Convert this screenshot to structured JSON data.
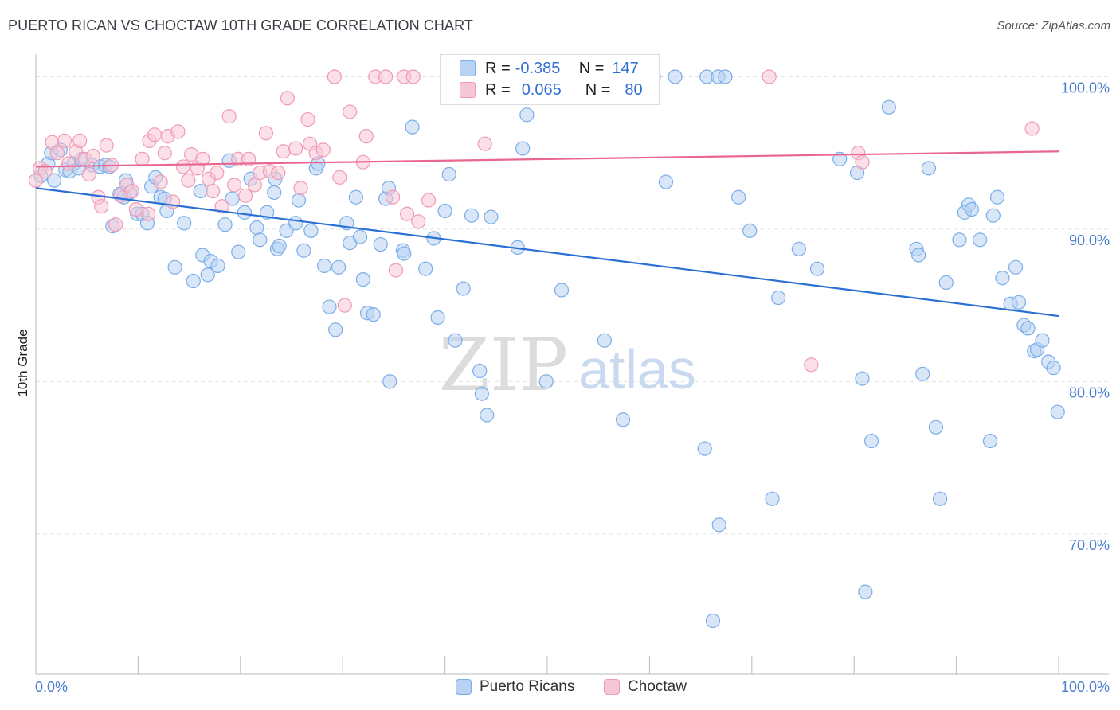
{
  "chart_data": {
    "type": "scatter",
    "title": "PUERTO RICAN VS CHOCTAW 10TH GRADE CORRELATION CHART",
    "source": "Source: ZipAtlas.com",
    "ylabel": "10th Grade",
    "xlabel": "",
    "x_tick_labels": [
      "0.0%",
      "100.0%"
    ],
    "y_tick_labels": [
      "100.0%",
      "90.0%",
      "80.0%",
      "70.0%"
    ],
    "y_ticks": [
      100,
      90,
      80,
      70
    ],
    "xlim": [
      0,
      100
    ],
    "ylim": [
      60.8,
      101.8
    ],
    "watermark": {
      "zip": "ZIP",
      "atlas": "atlas"
    },
    "legend": {
      "r_label": "R =",
      "n_label": "N =",
      "items": [
        {
          "name": "Puerto Ricans",
          "r": "-0.385",
          "n": "147"
        },
        {
          "name": "Choctaw",
          "r": "0.065",
          "n": "80"
        }
      ]
    },
    "series": [
      {
        "name": "Puerto Ricans",
        "color": "#7aaee8",
        "fill": "#b8d2f3",
        "line_color": "#2a6fd4",
        "trend": {
          "x": [
            0,
            100
          ],
          "y": [
            92.7,
            84.3
          ]
        },
        "points": [
          [
            0.5,
            93.5
          ],
          [
            1.2,
            94.3
          ],
          [
            1.5,
            95.0
          ],
          [
            1.8,
            93.2
          ],
          [
            2.4,
            95.2
          ],
          [
            2.9,
            93.9
          ],
          [
            3.3,
            93.8
          ],
          [
            3.7,
            94.3
          ],
          [
            4.2,
            94.0
          ],
          [
            4.5,
            94.6
          ],
          [
            5.5,
            94.2
          ],
          [
            6.3,
            94.1
          ],
          [
            6.8,
            94.2
          ],
          [
            7.2,
            94.1
          ],
          [
            7.5,
            90.2
          ],
          [
            8.2,
            92.3
          ],
          [
            8.6,
            92.1
          ],
          [
            8.8,
            93.2
          ],
          [
            9.2,
            92.4
          ],
          [
            9.9,
            91.0
          ],
          [
            10.4,
            91.0
          ],
          [
            10.9,
            90.4
          ],
          [
            11.3,
            92.8
          ],
          [
            11.7,
            93.4
          ],
          [
            12.2,
            92.1
          ],
          [
            12.6,
            92.0
          ],
          [
            12.8,
            91.2
          ],
          [
            13.6,
            87.5
          ],
          [
            14.5,
            90.4
          ],
          [
            15.4,
            86.6
          ],
          [
            16.1,
            92.5
          ],
          [
            16.3,
            88.3
          ],
          [
            16.8,
            87.0
          ],
          [
            17.1,
            87.9
          ],
          [
            17.8,
            87.6
          ],
          [
            18.5,
            90.3
          ],
          [
            18.9,
            94.5
          ],
          [
            19.2,
            92.0
          ],
          [
            19.8,
            88.5
          ],
          [
            20.4,
            91.1
          ],
          [
            21.0,
            93.3
          ],
          [
            21.6,
            90.1
          ],
          [
            21.9,
            89.3
          ],
          [
            22.6,
            91.1
          ],
          [
            23.3,
            92.4
          ],
          [
            23.4,
            93.3
          ],
          [
            23.6,
            88.7
          ],
          [
            23.8,
            88.9
          ],
          [
            24.5,
            89.9
          ],
          [
            25.4,
            90.4
          ],
          [
            25.7,
            91.9
          ],
          [
            26.2,
            88.6
          ],
          [
            26.9,
            89.9
          ],
          [
            27.4,
            94.0
          ],
          [
            27.6,
            94.3
          ],
          [
            28.2,
            87.6
          ],
          [
            28.7,
            84.9
          ],
          [
            29.3,
            83.4
          ],
          [
            29.6,
            87.5
          ],
          [
            30.4,
            90.4
          ],
          [
            30.7,
            89.1
          ],
          [
            31.3,
            92.1
          ],
          [
            31.7,
            89.5
          ],
          [
            32.0,
            86.7
          ],
          [
            32.4,
            84.5
          ],
          [
            33.0,
            84.4
          ],
          [
            33.7,
            89.0
          ],
          [
            34.2,
            92.0
          ],
          [
            34.5,
            92.7
          ],
          [
            34.6,
            80.0
          ],
          [
            35.9,
            88.6
          ],
          [
            36.0,
            88.4
          ],
          [
            36.8,
            96.7
          ],
          [
            38.1,
            87.4
          ],
          [
            38.9,
            89.4
          ],
          [
            39.3,
            84.2
          ],
          [
            40.0,
            91.2
          ],
          [
            40.4,
            93.6
          ],
          [
            41.0,
            82.7
          ],
          [
            41.8,
            86.1
          ],
          [
            42.6,
            90.9
          ],
          [
            43.4,
            80.7
          ],
          [
            43.6,
            79.2
          ],
          [
            44.1,
            77.8
          ],
          [
            44.5,
            90.8
          ],
          [
            47.1,
            88.8
          ],
          [
            47.6,
            95.3
          ],
          [
            48.0,
            97.5
          ],
          [
            49.1,
            100.0
          ],
          [
            49.9,
            80.0
          ],
          [
            51.4,
            86.0
          ],
          [
            53.7,
            100.0
          ],
          [
            55.6,
            82.7
          ],
          [
            57.4,
            77.5
          ],
          [
            59.0,
            100.0
          ],
          [
            60.4,
            100.0
          ],
          [
            61.6,
            93.1
          ],
          [
            62.5,
            100.0
          ],
          [
            65.4,
            75.6
          ],
          [
            65.6,
            100.0
          ],
          [
            66.2,
            64.3
          ],
          [
            66.7,
            100.0
          ],
          [
            66.8,
            70.6
          ],
          [
            67.4,
            100.0
          ],
          [
            68.7,
            92.1
          ],
          [
            69.8,
            89.9
          ],
          [
            72.0,
            72.3
          ],
          [
            72.6,
            85.5
          ],
          [
            74.6,
            88.7
          ],
          [
            76.4,
            87.4
          ],
          [
            78.6,
            94.6
          ],
          [
            80.3,
            93.7
          ],
          [
            80.8,
            80.2
          ],
          [
            81.1,
            66.2
          ],
          [
            81.7,
            76.1
          ],
          [
            83.4,
            98.0
          ],
          [
            86.1,
            88.7
          ],
          [
            86.3,
            88.3
          ],
          [
            86.7,
            80.5
          ],
          [
            87.3,
            94.0
          ],
          [
            88.0,
            77.0
          ],
          [
            88.4,
            72.3
          ],
          [
            89.0,
            86.5
          ],
          [
            90.3,
            89.3
          ],
          [
            90.8,
            91.1
          ],
          [
            91.2,
            91.6
          ],
          [
            91.5,
            91.3
          ],
          [
            92.3,
            89.3
          ],
          [
            93.3,
            76.1
          ],
          [
            93.6,
            90.9
          ],
          [
            94.0,
            92.1
          ],
          [
            94.5,
            86.8
          ],
          [
            95.3,
            85.1
          ],
          [
            95.8,
            87.5
          ],
          [
            96.1,
            85.2
          ],
          [
            96.6,
            83.7
          ],
          [
            97.0,
            83.5
          ],
          [
            97.6,
            82.0
          ],
          [
            97.9,
            82.1
          ],
          [
            98.4,
            82.7
          ],
          [
            99.0,
            81.3
          ],
          [
            99.5,
            80.9
          ],
          [
            99.9,
            78.0
          ]
        ]
      },
      {
        "name": "Choctaw",
        "color": "#f09ab5",
        "fill": "#f7c6d6",
        "line_color": "#e8668f",
        "trend": {
          "x": [
            0,
            100
          ],
          "y": [
            94.1,
            95.1
          ]
        },
        "points": [
          [
            0.0,
            93.2
          ],
          [
            0.4,
            94.0
          ],
          [
            0.9,
            93.8
          ],
          [
            1.6,
            95.7
          ],
          [
            2.1,
            95.0
          ],
          [
            2.8,
            95.8
          ],
          [
            3.2,
            94.3
          ],
          [
            3.9,
            95.1
          ],
          [
            4.3,
            95.8
          ],
          [
            4.8,
            94.6
          ],
          [
            5.2,
            93.6
          ],
          [
            5.6,
            94.8
          ],
          [
            6.1,
            92.1
          ],
          [
            6.4,
            91.5
          ],
          [
            6.9,
            95.5
          ],
          [
            7.4,
            94.2
          ],
          [
            7.8,
            90.3
          ],
          [
            8.3,
            92.2
          ],
          [
            8.9,
            92.9
          ],
          [
            9.4,
            92.5
          ],
          [
            9.8,
            91.3
          ],
          [
            10.4,
            94.6
          ],
          [
            11.0,
            91.0
          ],
          [
            11.1,
            95.8
          ],
          [
            11.6,
            96.2
          ],
          [
            12.2,
            93.1
          ],
          [
            12.6,
            95.0
          ],
          [
            12.9,
            96.1
          ],
          [
            13.4,
            91.8
          ],
          [
            13.9,
            96.4
          ],
          [
            14.4,
            94.1
          ],
          [
            14.9,
            93.2
          ],
          [
            15.2,
            94.9
          ],
          [
            15.8,
            94.0
          ],
          [
            16.3,
            94.6
          ],
          [
            16.9,
            93.3
          ],
          [
            17.3,
            92.5
          ],
          [
            17.7,
            93.7
          ],
          [
            18.2,
            91.5
          ],
          [
            18.9,
            97.4
          ],
          [
            19.4,
            92.9
          ],
          [
            19.8,
            94.6
          ],
          [
            20.5,
            92.2
          ],
          [
            20.8,
            94.6
          ],
          [
            21.4,
            92.9
          ],
          [
            21.9,
            93.7
          ],
          [
            22.5,
            96.3
          ],
          [
            22.9,
            93.8
          ],
          [
            23.7,
            93.7
          ],
          [
            24.2,
            95.1
          ],
          [
            24.6,
            98.6
          ],
          [
            25.4,
            95.3
          ],
          [
            25.9,
            92.7
          ],
          [
            26.6,
            97.2
          ],
          [
            26.8,
            95.6
          ],
          [
            27.4,
            95.0
          ],
          [
            28.1,
            95.2
          ],
          [
            29.2,
            100.0
          ],
          [
            29.7,
            93.4
          ],
          [
            30.2,
            85.0
          ],
          [
            30.7,
            97.7
          ],
          [
            32.0,
            94.4
          ],
          [
            32.3,
            96.1
          ],
          [
            33.2,
            100.0
          ],
          [
            34.2,
            100.0
          ],
          [
            34.9,
            92.1
          ],
          [
            35.2,
            87.3
          ],
          [
            36.0,
            100.0
          ],
          [
            36.3,
            91.0
          ],
          [
            36.9,
            100.0
          ],
          [
            37.4,
            90.5
          ],
          [
            38.4,
            91.9
          ],
          [
            43.9,
            95.6
          ],
          [
            71.7,
            100.0
          ],
          [
            75.8,
            81.1
          ],
          [
            80.4,
            95.0
          ],
          [
            80.8,
            94.4
          ],
          [
            97.4,
            96.6
          ]
        ]
      }
    ]
  }
}
